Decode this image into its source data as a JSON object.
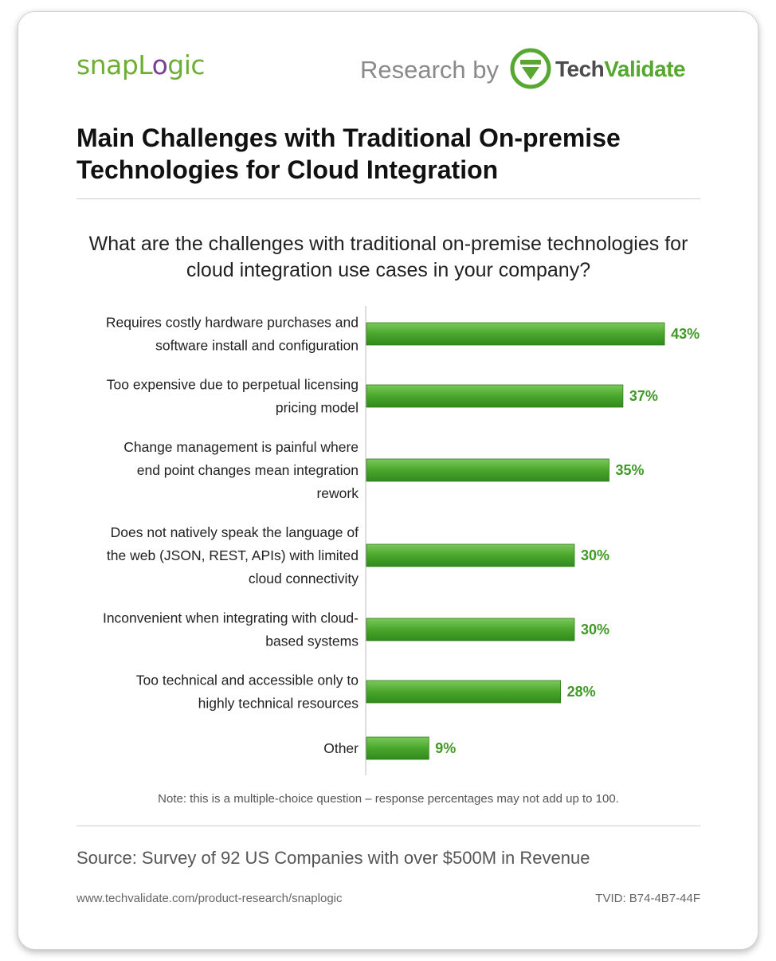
{
  "header": {
    "brand_left_main": "snapL",
    "brand_left_accent": "o",
    "brand_left_end": "gic",
    "research_label": "Research by",
    "brand_right_tech": "Tech",
    "brand_right_validate": "Validate"
  },
  "title": "Main Challenges with Traditional On-premise Technologies for Cloud Integration",
  "question": "What are the challenges with traditional on-premise technologies for cloud integration use cases in your company?",
  "chart_data": {
    "type": "bar",
    "orientation": "horizontal",
    "categories": [
      "Requires costly hardware purchases and software install and configuration",
      "Too expensive due to perpetual licensing pricing model",
      "Change management is painful where end point changes mean integration rework",
      "Does not natively speak the language of the web (JSON, REST, APIs) with limited cloud connectivity",
      "Inconvenient when integrating with cloud-based systems",
      "Too technical and accessible only to highly technical resources",
      "Other"
    ],
    "category_lines": [
      [
        "Requires costly hardware purchases and",
        "software install and configuration"
      ],
      [
        "Too expensive due to perpetual licensing",
        "pricing model"
      ],
      [
        "Change management is painful where",
        "end point changes mean integration",
        "rework"
      ],
      [
        "Does not natively speak the language of",
        "the web (JSON, REST, APIs) with limited",
        "cloud connectivity"
      ],
      [
        "Inconvenient when integrating with cloud-",
        "based systems"
      ],
      [
        "Too technical and accessible only to",
        "highly technical resources"
      ],
      [
        "Other"
      ]
    ],
    "values": [
      43,
      37,
      35,
      30,
      30,
      28,
      9
    ],
    "value_labels": [
      "43%",
      "37%",
      "35%",
      "30%",
      "30%",
      "28%",
      "9%"
    ],
    "unit": "%",
    "bar_color": "#4aa62c",
    "label_color": "#3f9a25",
    "grid": false,
    "legend": "none"
  },
  "note": "Note: this is a multiple-choice question – response percentages may not add up to 100.",
  "source": "Source: Survey of 92 US Companies with over $500M in Revenue",
  "footer": {
    "url": "www.techvalidate.com/product-research/snaplogic",
    "tvid": "TVID: B74-4B7-44F"
  }
}
